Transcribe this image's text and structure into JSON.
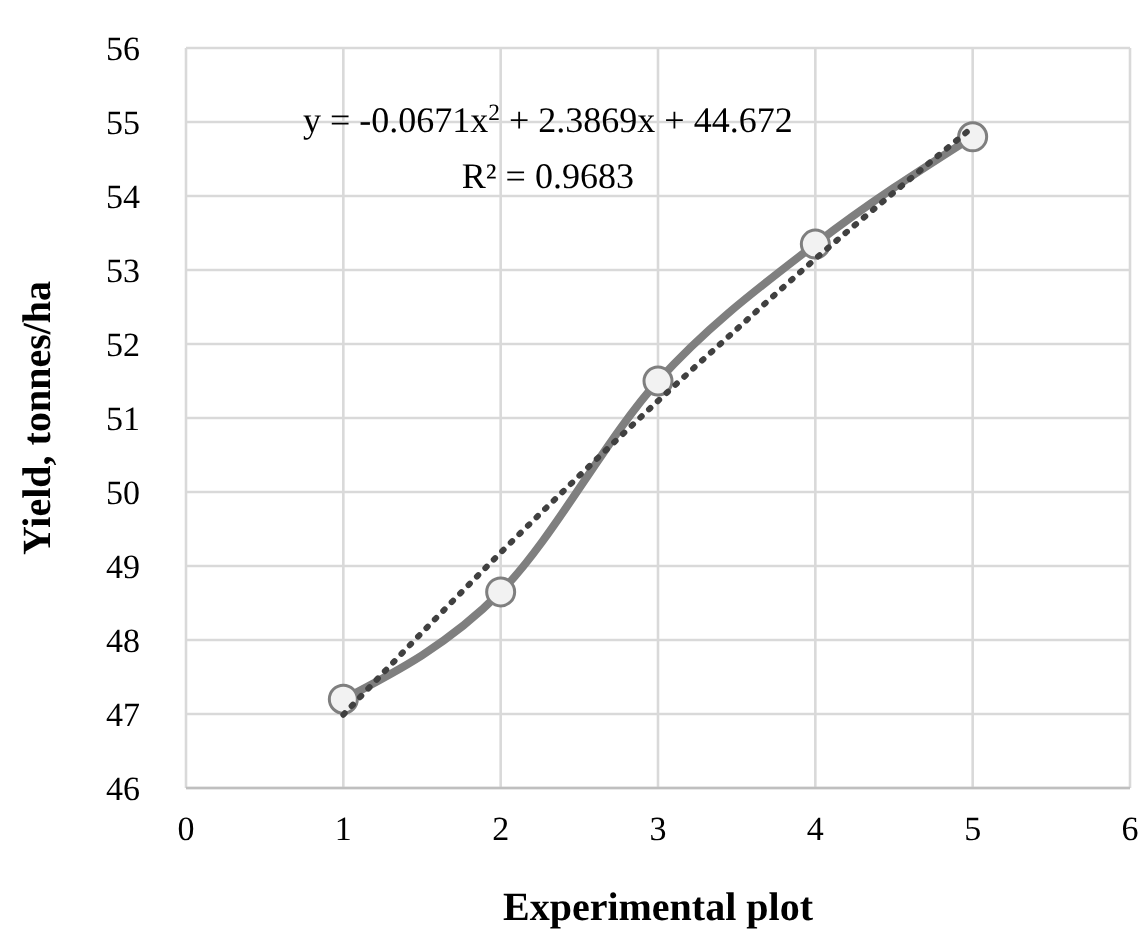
{
  "chart_data": {
    "type": "line",
    "xlabel": "Experimental plot",
    "ylabel": "Yield, tonnes/ha",
    "x": [
      1,
      2,
      3,
      4,
      5
    ],
    "series": [
      {
        "color": "#7f7f7f",
        "values": [
          47.2,
          48.65,
          51.5,
          53.35,
          54.8
        ],
        "marker": "circle",
        "line_style": "solid"
      },
      {
        "type": "line",
        "color": "#404040",
        "x": [
          1,
          1.5,
          2,
          2.5,
          3,
          3.5,
          4,
          4.5,
          5
        ],
        "values": [
          46.99,
          48.1,
          49.18,
          50.22,
          51.23,
          52.2,
          53.15,
          54.05,
          54.93
        ],
        "marker": "none",
        "line_style": "dotted"
      }
    ],
    "xlim": [
      0,
      6
    ],
    "xticks": [
      0,
      1,
      2,
      3,
      4,
      5,
      6
    ],
    "ylim": [
      46,
      56
    ],
    "yticks": [
      46,
      47,
      48,
      49,
      50,
      51,
      52,
      53,
      54,
      55,
      56
    ],
    "grid": true,
    "annotations": [
      "y = -0.0671x$^{2}$ + 2.3869x + 44.672",
      "R² = 0.9683"
    ]
  }
}
